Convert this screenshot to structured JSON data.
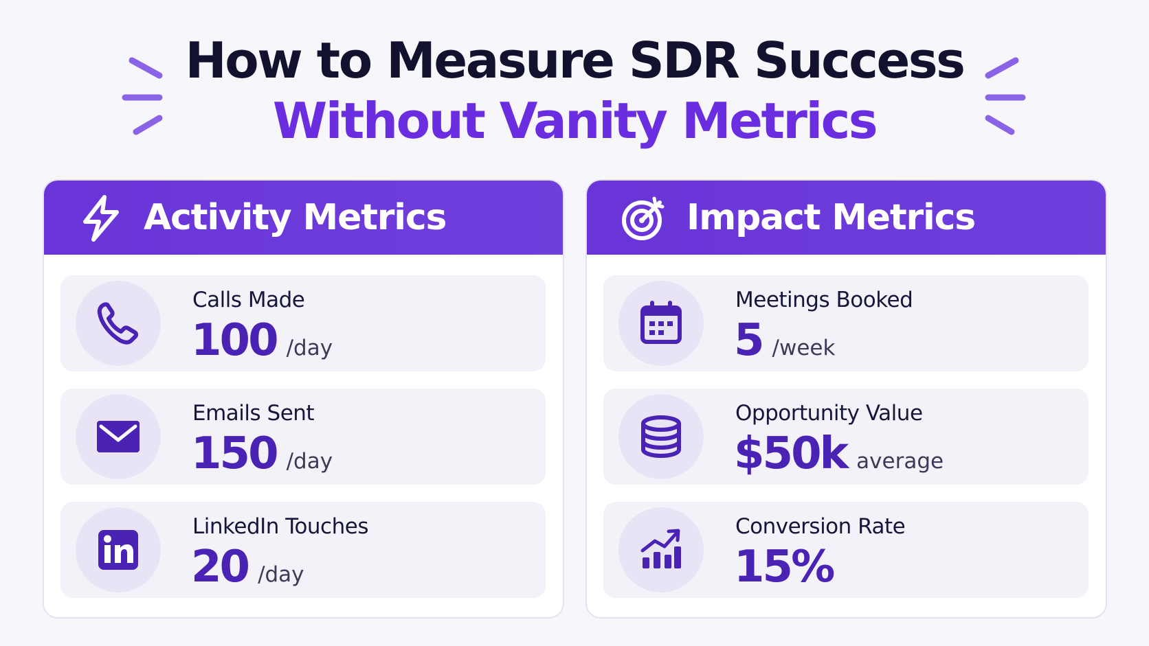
{
  "title": {
    "line1": "How to Measure SDR Success",
    "line2": "Without Vanity Metrics"
  },
  "colors": {
    "title_dark": "#12122e",
    "accent_purple": "#6a2ee0",
    "header_purple": "#6a34d8",
    "value_purple": "#4a22b4",
    "card_bg": "#f3f2f9",
    "icon_circle_bg": "#e8e4f6"
  },
  "activity": {
    "title": "Activity Metrics",
    "icon": "lightning-bolt-icon",
    "items": [
      {
        "label": "Calls Made",
        "value": "100",
        "unit": "/day",
        "icon": "phone-icon"
      },
      {
        "label": "Emails Sent",
        "value": "150",
        "unit": "/day",
        "icon": "envelope-icon"
      },
      {
        "label": "LinkedIn Touches",
        "value": "20",
        "unit": "/day",
        "icon": "linkedin-icon"
      }
    ]
  },
  "impact": {
    "title": "Impact Metrics",
    "icon": "target-icon",
    "items": [
      {
        "label": "Meetings Booked",
        "value": "5",
        "unit": "/week",
        "icon": "calendar-icon"
      },
      {
        "label": "Opportunity Value",
        "value": "$50k",
        "unit": "average",
        "icon": "coin-stack-icon"
      },
      {
        "label": "Conversion Rate",
        "value": "15%",
        "unit": "",
        "icon": "bar-chart-growth-icon"
      }
    ]
  }
}
